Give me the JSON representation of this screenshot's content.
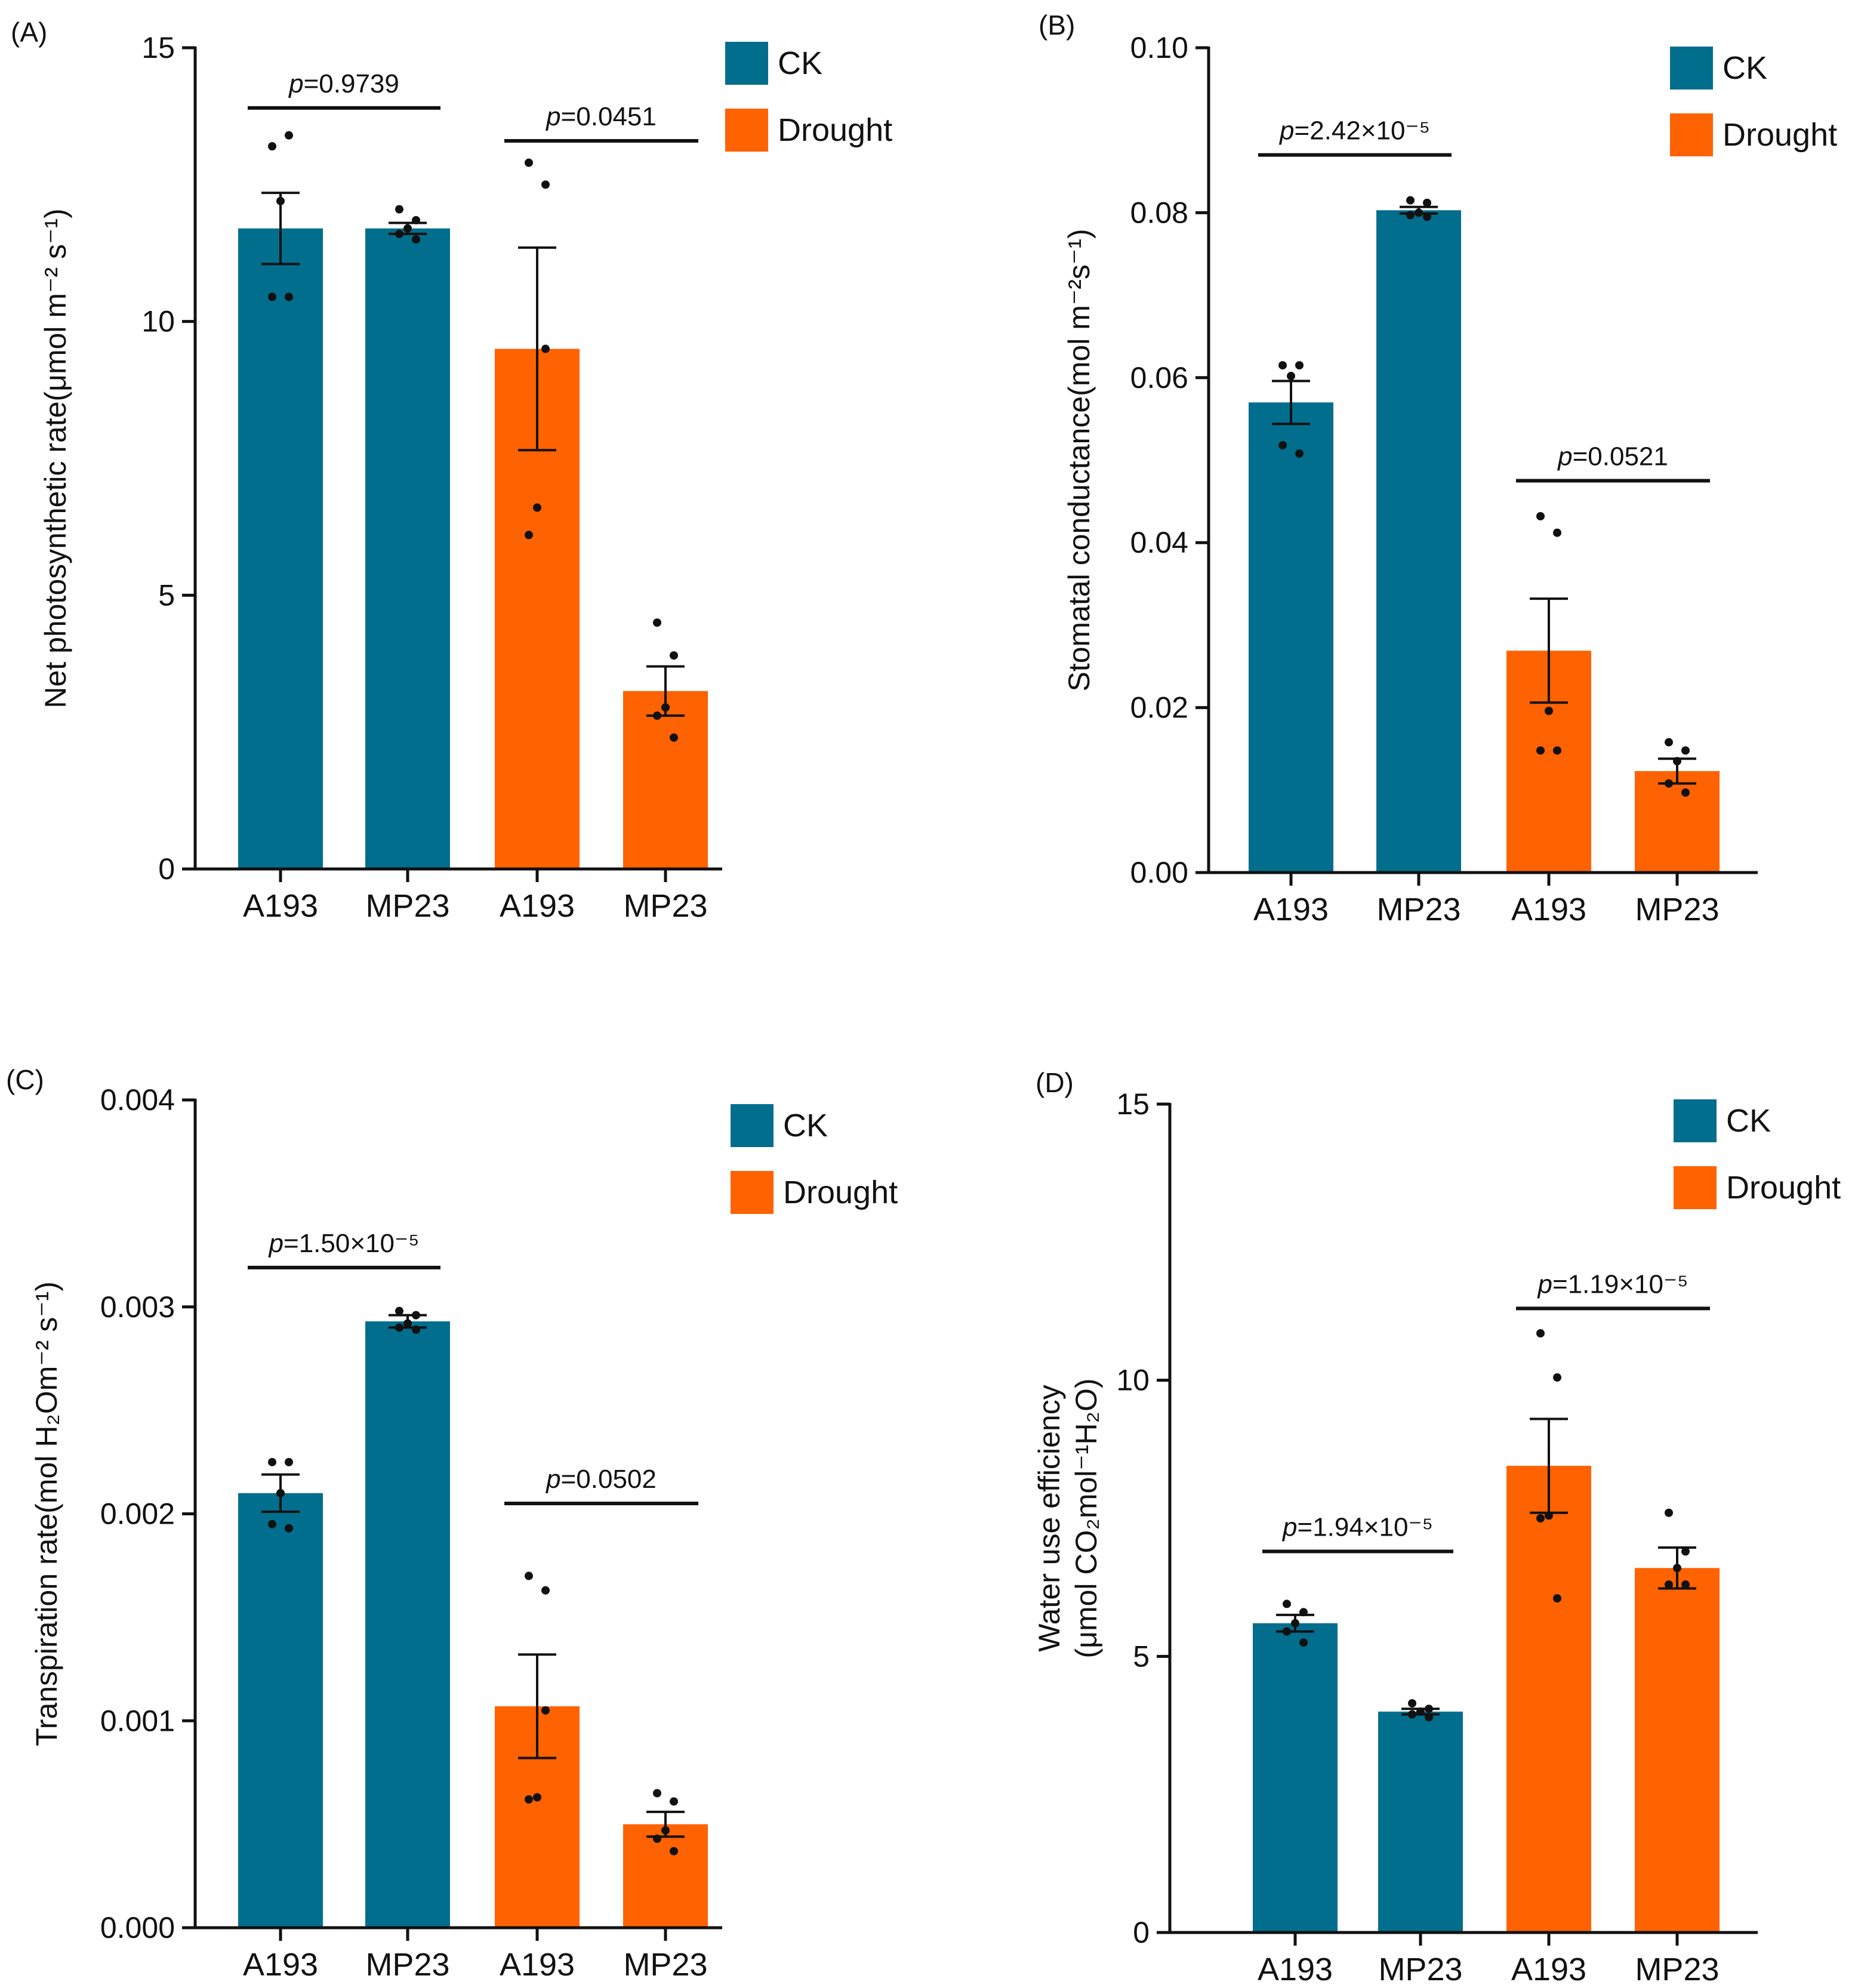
{
  "colors": {
    "ck": "#026e8d",
    "drought": "#ff6200",
    "ink": "#111111"
  },
  "chart_data": [
    {
      "type": "bar",
      "panel_label": "(A)",
      "ylabel": "Net photosynthetic rate(μmol m⁻² s⁻¹)",
      "ylabel_lines": [
        "Net photosynthetic rate(μmol m⁻² s⁻¹)"
      ],
      "ylim": [
        0,
        15
      ],
      "yticks": [
        0,
        5,
        10,
        15
      ],
      "ytick_labels": [
        "0",
        "5",
        "10",
        "15"
      ],
      "categories": [
        "A193",
        "MP23",
        "A193",
        "MP23"
      ],
      "groups": [
        "CK",
        "CK",
        "Drought",
        "Drought"
      ],
      "values": [
        11.7,
        11.7,
        9.5,
        3.25
      ],
      "sem": [
        0.65,
        0.1,
        1.85,
        0.45
      ],
      "points": [
        [
          13.2,
          13.4,
          12.2,
          10.45,
          10.45
        ],
        [
          12.05,
          11.85,
          11.7,
          11.6,
          11.5
        ],
        [
          12.9,
          12.5,
          6.6,
          6.1,
          9.5
        ],
        [
          4.5,
          3.9,
          2.95,
          2.8,
          2.4
        ]
      ],
      "legend": [
        "CK",
        "Drought"
      ],
      "comparisons": [
        {
          "from": 0,
          "to": 1,
          "y": 13.9,
          "label": "p=0.9739",
          "p_italic": "p",
          "p_rest": "=0.9739"
        },
        {
          "from": 2,
          "to": 3,
          "y": 13.3,
          "label": "p=0.0451",
          "p_italic": "p",
          "p_rest": "=0.0451"
        }
      ]
    },
    {
      "type": "bar",
      "panel_label": "(B)",
      "ylabel": "Stomatal conductance(mol m⁻²s⁻¹)",
      "ylabel_lines": [
        "Stomatal conductance(mol m⁻²s⁻¹)"
      ],
      "ylim": [
        0,
        0.1
      ],
      "yticks": [
        0,
        0.02,
        0.04,
        0.06,
        0.08,
        0.1
      ],
      "ytick_labels": [
        "0.00",
        "0.02",
        "0.04",
        "0.06",
        "0.08",
        "0.10"
      ],
      "categories": [
        "A193",
        "MP23",
        "A193",
        "MP23"
      ],
      "groups": [
        "CK",
        "CK",
        "Drought",
        "Drought"
      ],
      "values": [
        0.057,
        0.0803,
        0.0269,
        0.0123
      ],
      "sem": [
        0.0026,
        0.0004,
        0.0063,
        0.0015
      ],
      "points": [
        [
          0.0615,
          0.0615,
          0.0602,
          0.0518,
          0.0508
        ],
        [
          0.0815,
          0.0812,
          0.08,
          0.0797,
          0.0795
        ],
        [
          0.0432,
          0.0412,
          0.0196,
          0.0148,
          0.0148
        ],
        [
          0.0158,
          0.0148,
          0.0135,
          0.0108,
          0.0097
        ]
      ],
      "legend": [
        "CK",
        "Drought"
      ],
      "comparisons": [
        {
          "from": 0,
          "to": 1,
          "y": 0.087,
          "label": "p=2.42×10⁻⁵",
          "p_italic": "p",
          "p_rest": "=2.42×10⁻⁵"
        },
        {
          "from": 2,
          "to": 3,
          "y": 0.0475,
          "label": "p=0.0521",
          "p_italic": "p",
          "p_rest": "=0.0521"
        }
      ]
    },
    {
      "type": "bar",
      "panel_label": "(C)",
      "ylabel": "Transpiration rate(mol H₂Om⁻² s⁻¹)",
      "ylabel_lines": [
        "Transpiration rate(mol H₂Om⁻² s⁻¹)"
      ],
      "ylim": [
        0,
        0.004
      ],
      "yticks": [
        0,
        0.001,
        0.002,
        0.003,
        0.004
      ],
      "ytick_labels": [
        "0.000",
        "0.001",
        "0.002",
        "0.003",
        "0.004"
      ],
      "categories": [
        "A193",
        "MP23",
        "A193",
        "MP23"
      ],
      "groups": [
        "CK",
        "CK",
        "Drought",
        "Drought"
      ],
      "values": [
        0.0021,
        0.00293,
        0.00107,
        0.0005
      ],
      "sem": [
        9e-05,
        3e-05,
        0.00025,
        6e-05
      ],
      "points": [
        [
          0.00225,
          0.00225,
          0.0021,
          0.00195,
          0.00193
        ],
        [
          0.00298,
          0.00296,
          0.00292,
          0.0029,
          0.00289
        ],
        [
          0.0017,
          0.00163,
          0.00063,
          0.00062,
          0.00105
        ],
        [
          0.00065,
          0.00061,
          0.00047,
          0.00043,
          0.00037
        ]
      ],
      "legend": [
        "CK",
        "Drought"
      ],
      "comparisons": [
        {
          "from": 0,
          "to": 1,
          "y": 0.00319,
          "label": "p=1.50×10⁻⁵",
          "p_italic": "p",
          "p_rest": "=1.50×10⁻⁵"
        },
        {
          "from": 2,
          "to": 3,
          "y": 0.00205,
          "label": "p=0.0502",
          "p_italic": "p",
          "p_rest": "=0.0502"
        }
      ]
    },
    {
      "type": "bar",
      "panel_label": "(D)",
      "ylabel": "Water use efficiency (μmol CO₂mol⁻¹H₂O)",
      "ylabel_lines": [
        "Water use efficiency",
        "(μmol CO₂mol⁻¹H₂O)"
      ],
      "ylim": [
        0,
        15
      ],
      "yticks": [
        0,
        5,
        10,
        15
      ],
      "ytick_labels": [
        "0",
        "5",
        "10",
        "15"
      ],
      "categories": [
        "A193",
        "MP23",
        "A193",
        "MP23"
      ],
      "groups": [
        "CK",
        "CK",
        "Drought",
        "Drought"
      ],
      "values": [
        5.6,
        4.0,
        8.45,
        6.6
      ],
      "sem": [
        0.15,
        0.05,
        0.85,
        0.37
      ],
      "points": [
        [
          5.95,
          5.8,
          5.6,
          5.45,
          5.25
        ],
        [
          4.15,
          4.05,
          4.0,
          3.95,
          3.9
        ],
        [
          10.85,
          10.05,
          7.55,
          7.5,
          6.05
        ],
        [
          7.6,
          6.9,
          6.6,
          6.3,
          6.3
        ]
      ],
      "legend": [
        "CK",
        "Drought"
      ],
      "comparisons": [
        {
          "from": 0,
          "to": 1,
          "y": 6.9,
          "label": "p=1.94×10⁻⁵",
          "p_italic": "p",
          "p_rest": "=1.94×10⁻⁵"
        },
        {
          "from": 2,
          "to": 3,
          "y": 11.3,
          "label": "p=1.19×10⁻⁵",
          "p_italic": "p",
          "p_rest": "=1.19×10⁻⁵"
        }
      ]
    }
  ]
}
